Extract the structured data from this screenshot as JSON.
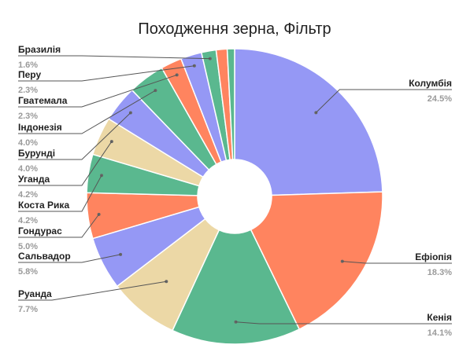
{
  "chart_data": {
    "type": "pie",
    "title": "Походження зерна, Фільтр",
    "donut": true,
    "start_direction": "top",
    "direction": "clockwise",
    "slices": [
      {
        "label": "Колумбія",
        "value": 24.5,
        "display": "24.5%",
        "color": "#9598F5"
      },
      {
        "label": "Ефіопія",
        "value": 18.3,
        "display": "18.3%",
        "color": "#FF845F"
      },
      {
        "label": "Кенія",
        "value": 14.1,
        "display": "14.1%",
        "color": "#5AB88F"
      },
      {
        "label": "Руанда",
        "value": 7.7,
        "display": "7.7%",
        "color": "#ECD8A6"
      },
      {
        "label": "Сальвадор",
        "value": 5.8,
        "display": "5.8%",
        "color": "#9598F5"
      },
      {
        "label": "Гондурас",
        "value": 5.0,
        "display": "5.0%",
        "color": "#FF845F"
      },
      {
        "label": "Коста Рика",
        "value": 4.2,
        "display": "4.2%",
        "color": "#5AB88F"
      },
      {
        "label": "Уганда",
        "value": 4.2,
        "display": "4.2%",
        "color": "#ECD8A6"
      },
      {
        "label": "Бурунді",
        "value": 4.0,
        "display": "4.0%",
        "color": "#9598F5"
      },
      {
        "label": "Індонезія",
        "value": 4.0,
        "display": "4.0%",
        "color": "#5AB88F"
      },
      {
        "label": "Гватемала",
        "value": 2.3,
        "display": "2.3%",
        "color": "#FF845F"
      },
      {
        "label": "Перу",
        "value": 2.3,
        "display": "2.3%",
        "color": "#9598F5"
      },
      {
        "label": "Бразилія",
        "value": 1.6,
        "display": "1.6%",
        "color": "#5AB88F"
      },
      {
        "label": "",
        "value": 1.2,
        "display": "",
        "color": "#FF845F"
      },
      {
        "label": "",
        "value": 0.8,
        "display": "",
        "color": "#5AB88F"
      }
    ]
  }
}
